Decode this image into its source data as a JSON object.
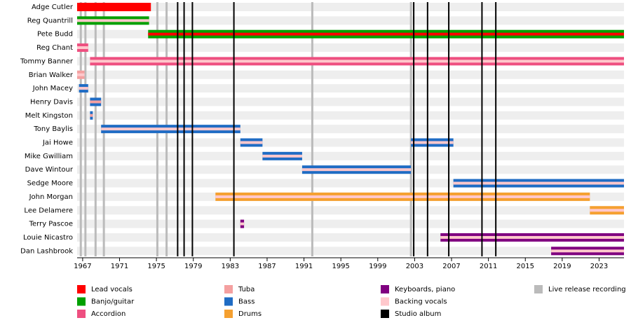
{
  "chart_data": {
    "type": "timeline",
    "xlim": [
      1966.4,
      2025.7
    ],
    "xticks": [
      1967,
      1971,
      1975,
      1979,
      1983,
      1987,
      1991,
      1995,
      1999,
      2003,
      2007,
      2011,
      2015,
      2019,
      2023
    ],
    "roles": [
      {
        "name": "Lead vocals",
        "color": "#ff0000"
      },
      {
        "name": "Banjo/guitar",
        "color": "#00a000"
      },
      {
        "name": "Accordion",
        "color": "#ee4f80"
      },
      {
        "name": "Tuba",
        "color": "#f4a0a0"
      },
      {
        "name": "Bass",
        "color": "#1f6cc4"
      },
      {
        "name": "Drums",
        "color": "#f5a030"
      },
      {
        "name": "Keyboards, piano",
        "color": "#800080"
      },
      {
        "name": "Backing vocals",
        "color": "#ffc8cc"
      }
    ],
    "members": [
      {
        "name": "Adge Cutler",
        "periods": [
          {
            "start": 1966.4,
            "end": 1974.4,
            "role": 0
          }
        ]
      },
      {
        "name": "Reg Quantrill",
        "periods": [
          {
            "start": 1966.4,
            "end": 1974.2,
            "role": 1,
            "stripe": 7
          }
        ]
      },
      {
        "name": "Pete Budd",
        "periods": [
          {
            "start": 1974.1,
            "end": 2025.7,
            "role": 1,
            "stripe": 0
          }
        ]
      },
      {
        "name": "Reg Chant",
        "periods": [
          {
            "start": 1966.4,
            "end": 1967.6,
            "role": 2,
            "stripe": 7
          }
        ]
      },
      {
        "name": "Tommy Banner",
        "periods": [
          {
            "start": 1967.8,
            "end": 2025.7,
            "role": 2,
            "stripe": 7
          }
        ]
      },
      {
        "name": "Brian Walker",
        "periods": [
          {
            "start": 1966.4,
            "end": 1967.2,
            "role": 3,
            "stripe": 7
          }
        ]
      },
      {
        "name": "John Macey",
        "periods": [
          {
            "start": 1966.6,
            "end": 1967.6,
            "role": 4,
            "stripe": 7
          }
        ]
      },
      {
        "name": "Henry Davis",
        "periods": [
          {
            "start": 1967.8,
            "end": 1969.0,
            "role": 4,
            "stripe": 3
          }
        ]
      },
      {
        "name": "Melt Kingston",
        "periods": [
          {
            "start": 1967.8,
            "end": 1968.1,
            "role": 4,
            "stripe": 3
          }
        ]
      },
      {
        "name": "Tony Baylis",
        "periods": [
          {
            "start": 1969.0,
            "end": 1984.1,
            "role": 4,
            "stripe": 7
          }
        ]
      },
      {
        "name": "Jai Howe",
        "periods": [
          {
            "start": 1984.1,
            "end": 1986.5,
            "role": 4,
            "stripe": 7
          },
          {
            "start": 2002.6,
            "end": 2007.2,
            "role": 4,
            "stripe": 7
          }
        ]
      },
      {
        "name": "Mike Gwilliam",
        "periods": [
          {
            "start": 1986.5,
            "end": 1990.8,
            "role": 4,
            "stripe": 7
          }
        ]
      },
      {
        "name": "Dave Wintour",
        "periods": [
          {
            "start": 1990.8,
            "end": 2002.6,
            "role": 4,
            "stripe": 7
          }
        ]
      },
      {
        "name": "Sedge Moore",
        "periods": [
          {
            "start": 2007.2,
            "end": 2025.7,
            "role": 4,
            "stripe": 7
          }
        ]
      },
      {
        "name": "John Morgan",
        "periods": [
          {
            "start": 1981.4,
            "end": 2022.0,
            "role": 5,
            "stripe": 7
          }
        ]
      },
      {
        "name": "Lee Delamere",
        "periods": [
          {
            "start": 2022.0,
            "end": 2025.7,
            "role": 5,
            "stripe": 7
          }
        ]
      },
      {
        "name": "Terry Pascoe",
        "periods": [
          {
            "start": 1984.1,
            "end": 1984.5,
            "role": 6,
            "stripe": 7
          }
        ]
      },
      {
        "name": "Louie Nicastro",
        "periods": [
          {
            "start": 2005.8,
            "end": 2025.7,
            "role": 6,
            "stripe": 7
          }
        ]
      },
      {
        "name": "Dan Lashbrook",
        "periods": [
          {
            "start": 2017.8,
            "end": 2025.7,
            "role": 6,
            "stripe": 7
          }
        ]
      }
    ],
    "studio_album": {
      "name": "Studio album",
      "color": "#000000",
      "years": [
        1977.3,
        1978.0,
        1978.9,
        1983.4,
        2002.9,
        2004.4,
        2006.7,
        2010.3,
        2011.8
      ]
    },
    "live_release": {
      "name": "Live release recording",
      "color": "#bbbbbb",
      "years": [
        1966.8,
        1967.3,
        1968.4,
        1969.3,
        1975.1,
        1976.1,
        1991.9,
        2002.6
      ]
    }
  }
}
